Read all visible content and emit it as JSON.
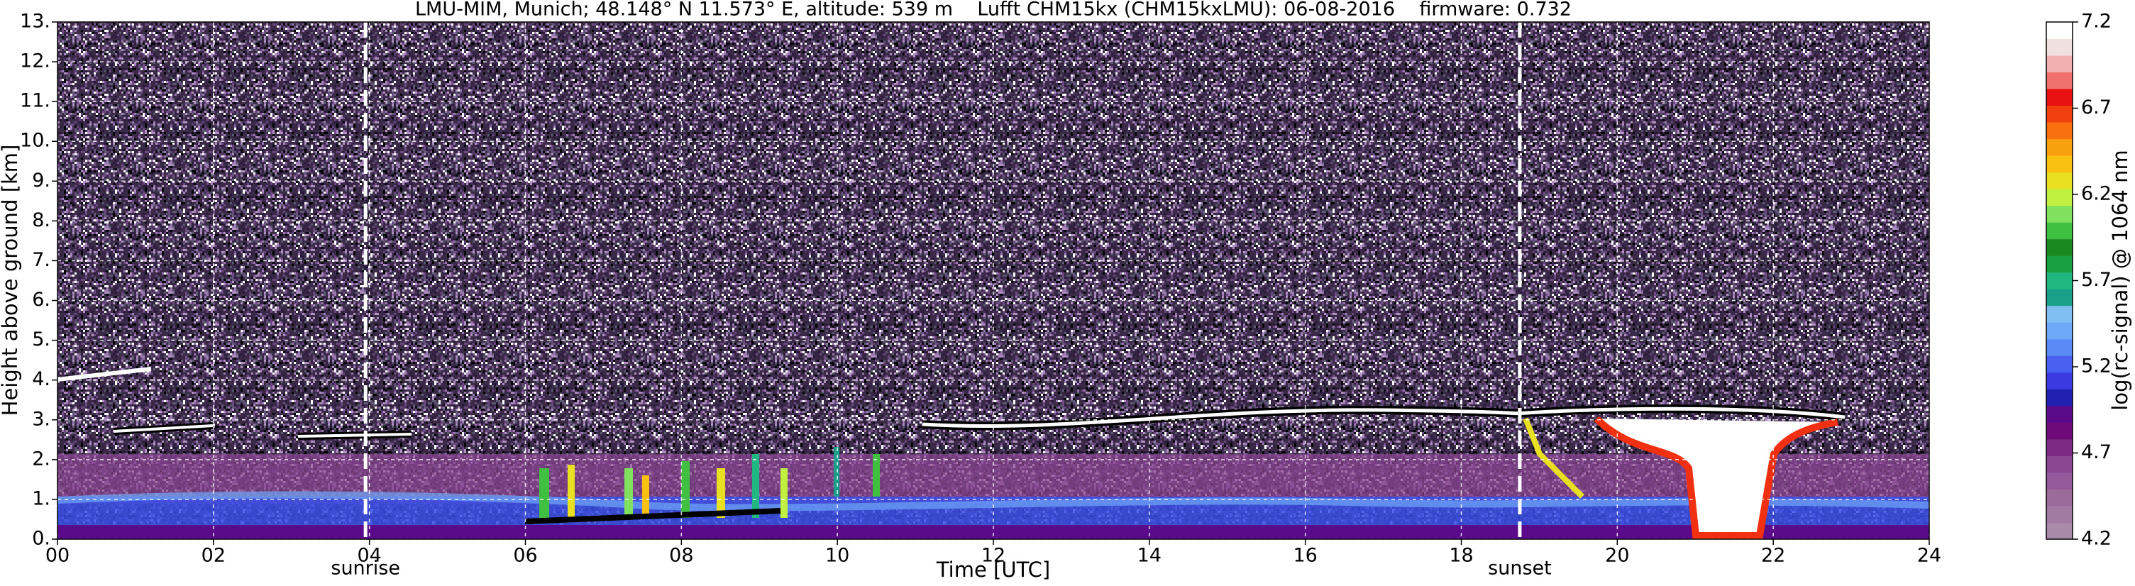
{
  "chart_data": {
    "type": "heatmap",
    "title": "LMU-MIM, Munich; 48.148° N 11.573° E, altitude: 539 m    Lufft CHM15kx (CHM15kxLMU): 06-08-2016    firmware: 0.732",
    "x_label": "Time [UTC]",
    "y_label": "Height above ground [km]",
    "xlim": [
      0,
      24
    ],
    "xticks": [
      {
        "value": 0,
        "label": "00"
      },
      {
        "value": 2,
        "label": "02"
      },
      {
        "value": 4,
        "label": "04"
      },
      {
        "value": 6,
        "label": "06"
      },
      {
        "value": 8,
        "label": "08"
      },
      10,
      12,
      14,
      16,
      18,
      20,
      22,
      24
    ],
    "ylim": [
      0,
      13
    ],
    "yticks": [
      {
        "value": 0,
        "label": "0."
      },
      {
        "value": 1,
        "label": "1."
      },
      {
        "value": 2,
        "label": "2."
      },
      {
        "value": 3,
        "label": "3."
      },
      {
        "value": 4,
        "label": "4."
      },
      {
        "value": 5,
        "label": "5."
      },
      {
        "value": 6,
        "label": "6."
      },
      {
        "value": 7,
        "label": "7."
      },
      {
        "value": 8,
        "label": "8."
      },
      {
        "value": 9,
        "label": "9."
      },
      {
        "value": 10,
        "label": "10."
      },
      {
        "value": 11,
        "label": "11."
      },
      {
        "value": 12,
        "label": "12."
      },
      {
        "value": 13,
        "label": "13."
      }
    ],
    "grid": true,
    "markers": [
      {
        "label": "sunrise",
        "x": 3.95
      },
      {
        "label": "sunset",
        "x": 18.75
      }
    ],
    "colorbar": {
      "label": "log(rc-signal) @ 1064 nm",
      "lim": [
        4.2,
        7.2
      ],
      "ticks": [
        4.2,
        4.7,
        5.2,
        5.7,
        6.2,
        6.7,
        7.2
      ],
      "colors": [
        "#a98aa8",
        "#a27aa2",
        "#9b6b9b",
        "#93599a",
        "#8a4690",
        "#7d2a85",
        "#6e0a7a",
        "#5a0a8a",
        "#2020b0",
        "#3a3ae0",
        "#4a60f0",
        "#5a8af5",
        "#6fa8f8",
        "#80c0f0",
        "#1aa08a",
        "#20b880",
        "#18a040",
        "#1a8a20",
        "#40c040",
        "#80e060",
        "#c0f040",
        "#e8e020",
        "#f8c010",
        "#f8a010",
        "#f87010",
        "#f04010",
        "#e81010",
        "#f07070",
        "#f0b0b0",
        "#f0e0e0",
        "#ffffff"
      ]
    }
  }
}
